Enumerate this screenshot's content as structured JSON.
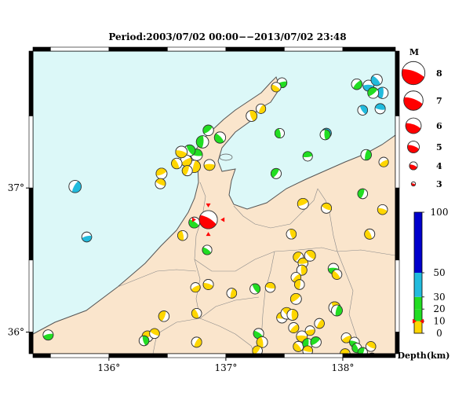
{
  "title": "Period:2003/07/02 00:00−−2013/07/02 23:48",
  "colors": {
    "sea": "#dcf8f8",
    "land": "#fae5cc",
    "coast": "#555555",
    "border": "#888888",
    "lake": "#dcf8f8"
  },
  "axes": {
    "x_ticks": [
      {
        "value": 136,
        "label": "136°"
      },
      {
        "value": 137,
        "label": "137°"
      },
      {
        "value": 138,
        "label": "138°"
      }
    ],
    "y_ticks": [
      {
        "value": 37,
        "label": "37°"
      },
      {
        "value": 36,
        "label": "36°"
      }
    ],
    "lon_range": [
      135.35,
      138.45
    ],
    "lat_range": [
      35.85,
      37.95
    ]
  },
  "magnitude_legend": {
    "title": "M",
    "items": [
      "8",
      "7",
      "6",
      "5",
      "4",
      "3"
    ]
  },
  "depth_legend": {
    "title": "Depth(km)",
    "ticks": [
      "100",
      "50",
      "30",
      "20",
      "10",
      "0"
    ],
    "marker_depth": 10,
    "colors": {
      "0_10": "#ffd600",
      "10_20": "#22dd22",
      "20_30": "#22dd22",
      "30_50": "#22bbdd",
      "50_100": "#0000cc"
    }
  },
  "main_event": {
    "lon": 136.85,
    "lat": 36.78,
    "mag": 5.5,
    "color": "#ff0000"
  },
  "events": [
    {
      "lon": 136.86,
      "lat": 37.16,
      "mag": 3.4,
      "color": "yellow"
    },
    {
      "lon": 136.95,
      "lat": 37.35,
      "mag": 3.5,
      "color": "green"
    },
    {
      "lon": 136.8,
      "lat": 37.32,
      "mag": 3.8,
      "color": "green"
    },
    {
      "lon": 136.85,
      "lat": 37.4,
      "mag": 3.3,
      "color": "green"
    },
    {
      "lon": 136.75,
      "lat": 37.23,
      "mag": 3.6,
      "color": "green"
    },
    {
      "lon": 136.69,
      "lat": 37.26,
      "mag": 3.5,
      "color": "green"
    },
    {
      "lon": 136.73,
      "lat": 37.15,
      "mag": 3.8,
      "color": "yellow"
    },
    {
      "lon": 136.66,
      "lat": 37.19,
      "mag": 3.5,
      "color": "yellow"
    },
    {
      "lon": 136.62,
      "lat": 37.25,
      "mag": 3.6,
      "color": "yellow"
    },
    {
      "lon": 136.58,
      "lat": 37.17,
      "mag": 3.3,
      "color": "yellow"
    },
    {
      "lon": 136.67,
      "lat": 37.12,
      "mag": 3.2,
      "color": "yellow"
    },
    {
      "lon": 136.45,
      "lat": 37.1,
      "mag": 3.4,
      "color": "yellow"
    },
    {
      "lon": 136.44,
      "lat": 37.03,
      "mag": 3.2,
      "color": "yellow"
    },
    {
      "lon": 137.22,
      "lat": 37.5,
      "mag": 3.4,
      "color": "yellow"
    },
    {
      "lon": 137.3,
      "lat": 37.55,
      "mag": 3.0,
      "color": "yellow"
    },
    {
      "lon": 137.48,
      "lat": 37.73,
      "mag": 3.1,
      "color": "green"
    },
    {
      "lon": 137.43,
      "lat": 37.7,
      "mag": 3.0,
      "color": "yellow"
    },
    {
      "lon": 137.46,
      "lat": 37.38,
      "mag": 3.0,
      "color": "green"
    },
    {
      "lon": 137.43,
      "lat": 37.1,
      "mag": 3.2,
      "color": "green"
    },
    {
      "lon": 137.7,
      "lat": 37.22,
      "mag": 3.0,
      "color": "green"
    },
    {
      "lon": 137.86,
      "lat": 37.38,
      "mag": 3.1,
      "color": "blue"
    },
    {
      "lon": 137.85,
      "lat": 37.37,
      "mag": 3.2,
      "color": "green"
    },
    {
      "lon": 138.12,
      "lat": 37.72,
      "mag": 3.3,
      "color": "green"
    },
    {
      "lon": 138.22,
      "lat": 37.71,
      "mag": 3.4,
      "color": "blue"
    },
    {
      "lon": 138.29,
      "lat": 37.75,
      "mag": 3.5,
      "color": "blue"
    },
    {
      "lon": 138.34,
      "lat": 37.66,
      "mag": 3.5,
      "color": "blue"
    },
    {
      "lon": 138.26,
      "lat": 37.66,
      "mag": 3.4,
      "color": "green"
    },
    {
      "lon": 138.32,
      "lat": 37.55,
      "mag": 3.2,
      "color": "blue"
    },
    {
      "lon": 138.17,
      "lat": 37.54,
      "mag": 3.1,
      "color": "blue"
    },
    {
      "lon": 138.2,
      "lat": 37.23,
      "mag": 3.3,
      "color": "green"
    },
    {
      "lon": 138.35,
      "lat": 37.18,
      "mag": 3.0,
      "color": "yellow"
    },
    {
      "lon": 138.34,
      "lat": 36.85,
      "mag": 3.1,
      "color": "yellow"
    },
    {
      "lon": 138.23,
      "lat": 36.68,
      "mag": 3.2,
      "color": "yellow"
    },
    {
      "lon": 138.17,
      "lat": 36.96,
      "mag": 3.1,
      "color": "green"
    },
    {
      "lon": 137.66,
      "lat": 36.89,
      "mag": 3.4,
      "color": "yellow"
    },
    {
      "lon": 137.86,
      "lat": 36.86,
      "mag": 3.2,
      "color": "yellow"
    },
    {
      "lon": 137.56,
      "lat": 36.68,
      "mag": 3.1,
      "color": "yellow"
    },
    {
      "lon": 135.71,
      "lat": 37.01,
      "mag": 3.8,
      "color": "blue"
    },
    {
      "lon": 135.81,
      "lat": 36.66,
      "mag": 3.1,
      "color": "blue"
    },
    {
      "lon": 136.73,
      "lat": 36.76,
      "mag": 3.4,
      "color": "green"
    },
    {
      "lon": 136.63,
      "lat": 36.67,
      "mag": 3.1,
      "color": "yellow"
    },
    {
      "lon": 137.62,
      "lat": 36.52,
      "mag": 3.2,
      "color": "yellow"
    },
    {
      "lon": 137.66,
      "lat": 36.48,
      "mag": 3.1,
      "color": "yellow"
    },
    {
      "lon": 137.72,
      "lat": 36.53,
      "mag": 3.4,
      "color": "yellow"
    },
    {
      "lon": 137.65,
      "lat": 36.43,
      "mag": 3.2,
      "color": "yellow"
    },
    {
      "lon": 137.6,
      "lat": 36.38,
      "mag": 3.1,
      "color": "yellow"
    },
    {
      "lon": 137.92,
      "lat": 36.44,
      "mag": 3.3,
      "color": "green"
    },
    {
      "lon": 137.95,
      "lat": 36.4,
      "mag": 3.1,
      "color": "yellow"
    },
    {
      "lon": 137.63,
      "lat": 36.33,
      "mag": 3.1,
      "color": "yellow"
    },
    {
      "lon": 137.6,
      "lat": 36.23,
      "mag": 3.4,
      "color": "yellow"
    },
    {
      "lon": 137.38,
      "lat": 36.31,
      "mag": 3.1,
      "color": "yellow"
    },
    {
      "lon": 137.25,
      "lat": 36.3,
      "mag": 3.2,
      "color": "green"
    },
    {
      "lon": 137.05,
      "lat": 36.27,
      "mag": 3.1,
      "color": "yellow"
    },
    {
      "lon": 136.74,
      "lat": 36.31,
      "mag": 3.0,
      "color": "yellow"
    },
    {
      "lon": 136.85,
      "lat": 36.33,
      "mag": 3.2,
      "color": "yellow"
    },
    {
      "lon": 136.75,
      "lat": 36.13,
      "mag": 3.1,
      "color": "yellow"
    },
    {
      "lon": 136.47,
      "lat": 36.11,
      "mag": 3.3,
      "color": "yellow"
    },
    {
      "lon": 136.33,
      "lat": 35.97,
      "mag": 3.4,
      "color": "yellow"
    },
    {
      "lon": 136.39,
      "lat": 35.99,
      "mag": 3.1,
      "color": "yellow"
    },
    {
      "lon": 136.3,
      "lat": 35.94,
      "mag": 3.1,
      "color": "green"
    },
    {
      "lon": 136.75,
      "lat": 35.93,
      "mag": 3.2,
      "color": "yellow"
    },
    {
      "lon": 135.48,
      "lat": 35.98,
      "mag": 3.2,
      "color": "green"
    },
    {
      "lon": 137.28,
      "lat": 35.99,
      "mag": 3.2,
      "color": "green"
    },
    {
      "lon": 137.31,
      "lat": 35.93,
      "mag": 3.4,
      "color": "yellow"
    },
    {
      "lon": 137.27,
      "lat": 35.87,
      "mag": 3.1,
      "color": "yellow"
    },
    {
      "lon": 137.48,
      "lat": 36.1,
      "mag": 3.3,
      "color": "yellow"
    },
    {
      "lon": 137.52,
      "lat": 36.13,
      "mag": 3.6,
      "color": "yellow"
    },
    {
      "lon": 137.57,
      "lat": 36.12,
      "mag": 3.4,
      "color": "yellow"
    },
    {
      "lon": 137.58,
      "lat": 36.03,
      "mag": 3.2,
      "color": "yellow"
    },
    {
      "lon": 137.65,
      "lat": 35.97,
      "mag": 3.4,
      "color": "yellow"
    },
    {
      "lon": 137.62,
      "lat": 35.9,
      "mag": 3.2,
      "color": "yellow"
    },
    {
      "lon": 137.7,
      "lat": 35.92,
      "mag": 3.2,
      "color": "green"
    },
    {
      "lon": 137.77,
      "lat": 35.93,
      "mag": 3.3,
      "color": "green"
    },
    {
      "lon": 137.7,
      "lat": 35.87,
      "mag": 3.1,
      "color": "yellow"
    },
    {
      "lon": 137.93,
      "lat": 36.17,
      "mag": 3.6,
      "color": "yellow"
    },
    {
      "lon": 137.95,
      "lat": 36.15,
      "mag": 3.4,
      "color": "green"
    },
    {
      "lon": 138.03,
      "lat": 35.96,
      "mag": 3.1,
      "color": "yellow"
    },
    {
      "lon": 138.1,
      "lat": 35.93,
      "mag": 3.1,
      "color": "green"
    },
    {
      "lon": 138.12,
      "lat": 35.89,
      "mag": 3.0,
      "color": "green"
    },
    {
      "lon": 138.17,
      "lat": 35.86,
      "mag": 3.0,
      "color": "green"
    },
    {
      "lon": 138.02,
      "lat": 35.85,
      "mag": 3.1,
      "color": "yellow"
    },
    {
      "lon": 138.24,
      "lat": 35.9,
      "mag": 3.1,
      "color": "yellow"
    },
    {
      "lon": 138.25,
      "lat": 35.82,
      "mag": 3.1,
      "color": "yellow"
    },
    {
      "lon": 137.8,
      "lat": 36.06,
      "mag": 3.1,
      "color": "yellow"
    },
    {
      "lon": 137.72,
      "lat": 36.01,
      "mag": 3.0,
      "color": "yellow"
    },
    {
      "lon": 136.84,
      "lat": 36.57,
      "mag": 3.0,
      "color": "green"
    }
  ]
}
